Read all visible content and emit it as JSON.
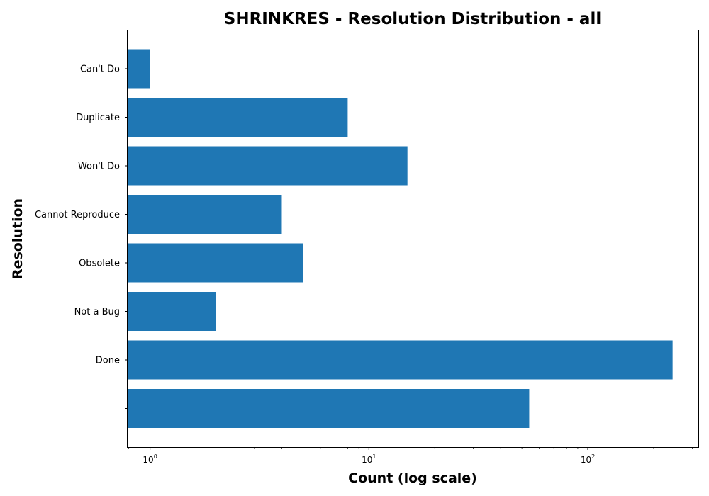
{
  "chart_data": {
    "type": "bar",
    "orientation": "horizontal",
    "title": "SHRINKRES - Resolution Distribution - all",
    "xlabel": "Count (log scale)",
    "ylabel": "Resolution",
    "x_scale": "log",
    "xlim": [
      0.79,
      320
    ],
    "x_ticks": [
      {
        "value": 1,
        "base": "10",
        "exp": "0"
      },
      {
        "value": 10,
        "base": "10",
        "exp": "1"
      },
      {
        "value": 100,
        "base": "10",
        "exp": "2"
      }
    ],
    "categories": [
      "",
      "Done",
      "Not a Bug",
      "Obsolete",
      "Cannot Reproduce",
      "Won't Do",
      "Duplicate",
      "Can't Do"
    ],
    "values": [
      54,
      244,
      2,
      5,
      4,
      15,
      8,
      1
    ],
    "bar_color": "#1f77b4",
    "grid": false,
    "legend": "none"
  }
}
